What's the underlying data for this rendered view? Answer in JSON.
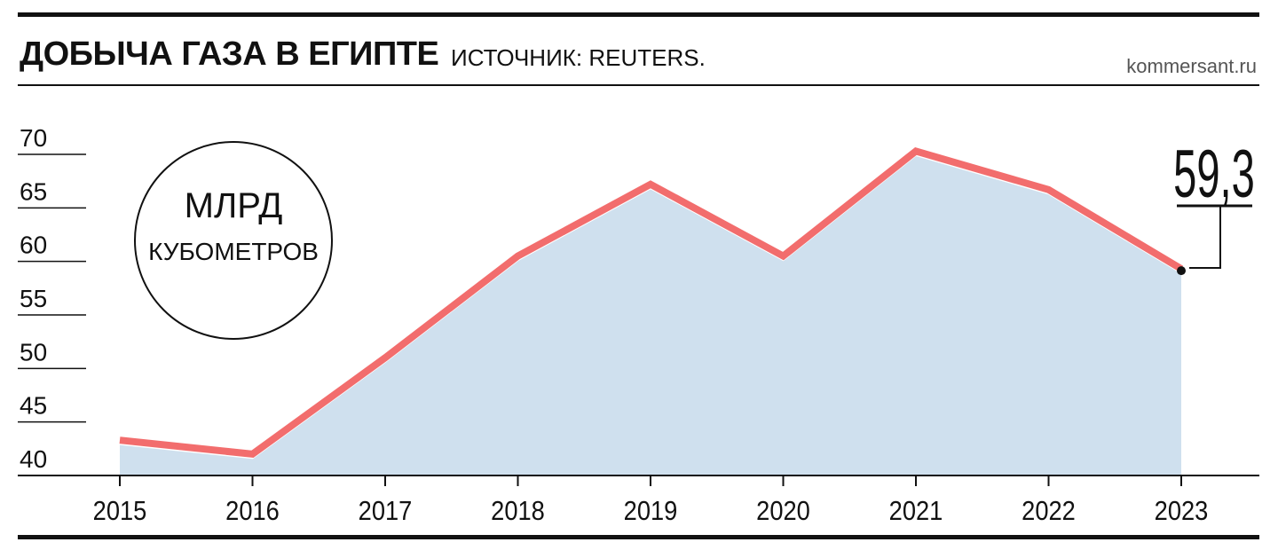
{
  "header": {
    "title": "ДОБЫЧА ГАЗА В ЕГИПТЕ",
    "source": "ИСТОЧНИК: REUTERS.",
    "site": "kommersant.ru"
  },
  "unit_badge": {
    "line1": "МЛРД",
    "line2": "КУБОМЕТРОВ"
  },
  "callout": {
    "value_label": "59,3",
    "year": "2023"
  },
  "colors": {
    "line": "#f26d6d",
    "area": "#cfe0ee",
    "axis": "#111111"
  },
  "chart_data": {
    "type": "area",
    "title": "ДОБЫЧА ГАЗА В ЕГИПТЕ",
    "xlabel": "",
    "ylabel": "МЛРД КУБОМЕТРОВ",
    "x": [
      "2015",
      "2016",
      "2017",
      "2018",
      "2019",
      "2020",
      "2021",
      "2022",
      "2023"
    ],
    "series": [
      {
        "values": [
          43.3,
          42.0,
          51.0,
          60.5,
          67.2,
          60.5,
          70.3,
          66.7,
          59.3
        ]
      }
    ],
    "yticks": [
      "40",
      "45",
      "50",
      "55",
      "60",
      "65",
      "70"
    ],
    "ylim": [
      40,
      70
    ],
    "grid": false,
    "legend": "none"
  }
}
